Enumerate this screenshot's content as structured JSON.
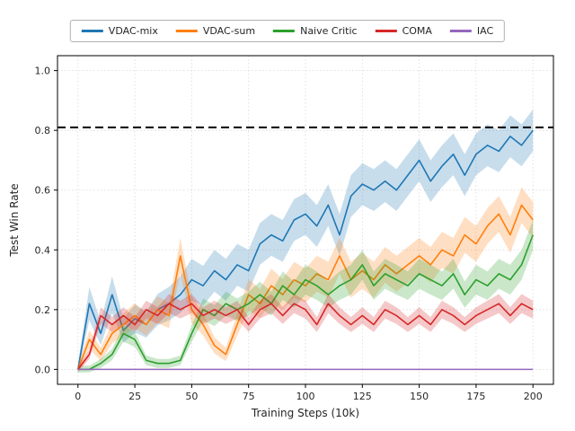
{
  "chart_data": {
    "type": "line",
    "title": "",
    "xlabel": "Training Steps (10k)",
    "ylabel": "Test Win Rate",
    "xlim": [
      -9,
      209
    ],
    "ylim": [
      -0.05,
      1.05
    ],
    "x_ticks": [
      0,
      25,
      50,
      75,
      100,
      125,
      150,
      175,
      200
    ],
    "y_ticks": [
      0.0,
      0.2,
      0.4,
      0.6,
      0.8,
      1.0
    ],
    "y_tick_labels": [
      "0.0",
      "0.2",
      "0.4",
      "0.6",
      "0.8",
      "1.0"
    ],
    "grid": true,
    "legend_position": "top",
    "baseline": {
      "y": 0.81,
      "style": "dashed",
      "color": "#000000"
    },
    "x": [
      0,
      5,
      10,
      15,
      20,
      25,
      30,
      35,
      40,
      45,
      50,
      55,
      60,
      65,
      70,
      75,
      80,
      85,
      90,
      95,
      100,
      105,
      110,
      115,
      120,
      125,
      130,
      135,
      140,
      145,
      150,
      155,
      160,
      165,
      170,
      175,
      180,
      185,
      190,
      195,
      200
    ],
    "series": [
      {
        "name": "VDAC-mix",
        "color": "#1f77b4",
        "band": 0.07,
        "values": [
          0.0,
          0.22,
          0.12,
          0.25,
          0.13,
          0.17,
          0.15,
          0.2,
          0.22,
          0.25,
          0.3,
          0.28,
          0.33,
          0.3,
          0.35,
          0.33,
          0.42,
          0.45,
          0.43,
          0.5,
          0.52,
          0.48,
          0.55,
          0.45,
          0.58,
          0.62,
          0.6,
          0.63,
          0.6,
          0.65,
          0.7,
          0.63,
          0.68,
          0.72,
          0.65,
          0.72,
          0.75,
          0.73,
          0.78,
          0.75,
          0.8
        ]
      },
      {
        "name": "VDAC-sum",
        "color": "#ff7f0e",
        "band": 0.06,
        "values": [
          0.0,
          0.1,
          0.05,
          0.12,
          0.15,
          0.18,
          0.15,
          0.2,
          0.18,
          0.38,
          0.2,
          0.15,
          0.08,
          0.05,
          0.15,
          0.25,
          0.22,
          0.28,
          0.25,
          0.3,
          0.28,
          0.32,
          0.3,
          0.38,
          0.3,
          0.33,
          0.3,
          0.35,
          0.32,
          0.35,
          0.38,
          0.35,
          0.4,
          0.38,
          0.45,
          0.42,
          0.48,
          0.52,
          0.45,
          0.55,
          0.5
        ]
      },
      {
        "name": "Naive Critic",
        "color": "#2ca02c",
        "band": 0.05,
        "values": [
          0.0,
          0.0,
          0.02,
          0.05,
          0.12,
          0.1,
          0.03,
          0.02,
          0.02,
          0.03,
          0.12,
          0.2,
          0.18,
          0.22,
          0.2,
          0.22,
          0.25,
          0.22,
          0.28,
          0.25,
          0.3,
          0.28,
          0.25,
          0.28,
          0.3,
          0.35,
          0.28,
          0.32,
          0.3,
          0.28,
          0.32,
          0.3,
          0.28,
          0.32,
          0.25,
          0.3,
          0.28,
          0.32,
          0.3,
          0.35,
          0.45
        ]
      },
      {
        "name": "COMA",
        "color": "#d62728",
        "band": 0.04,
        "values": [
          0.0,
          0.05,
          0.18,
          0.15,
          0.18,
          0.15,
          0.2,
          0.18,
          0.22,
          0.2,
          0.22,
          0.18,
          0.2,
          0.18,
          0.2,
          0.15,
          0.2,
          0.22,
          0.18,
          0.22,
          0.2,
          0.15,
          0.22,
          0.18,
          0.15,
          0.18,
          0.15,
          0.2,
          0.18,
          0.15,
          0.18,
          0.15,
          0.2,
          0.18,
          0.15,
          0.18,
          0.2,
          0.22,
          0.18,
          0.22,
          0.2
        ]
      },
      {
        "name": "IAC",
        "color": "#9467bd",
        "band": 0.0,
        "values": [
          0,
          0,
          0,
          0,
          0,
          0,
          0,
          0,
          0,
          0,
          0,
          0,
          0,
          0,
          0,
          0,
          0,
          0,
          0,
          0,
          0,
          0,
          0,
          0,
          0,
          0,
          0,
          0,
          0,
          0,
          0,
          0,
          0,
          0,
          0,
          0,
          0,
          0,
          0,
          0,
          0
        ]
      }
    ]
  }
}
